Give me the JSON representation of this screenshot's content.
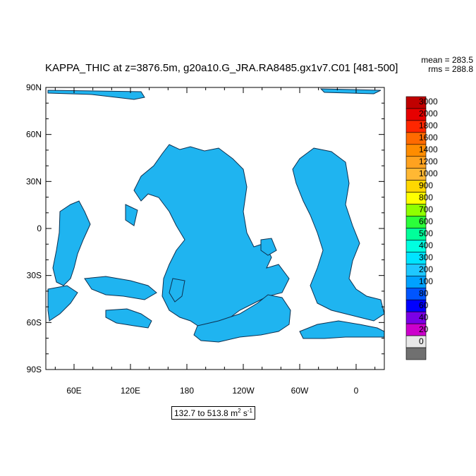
{
  "title": "KAPPA_THIC at z=3876.5m, g20a10.G_JRA.RA8485.gx1v7.C01 [481-500]",
  "stats": {
    "mean": "mean = 283.5",
    "rms": "rms = 288.8"
  },
  "map": {
    "lat_labels": [
      "90N",
      "60N",
      "30N",
      "0",
      "30S",
      "60S",
      "90S"
    ],
    "lon_labels": [
      "60E",
      "120E",
      "180",
      "120W",
      "60W",
      "0"
    ],
    "lon_range": [
      30,
      390
    ],
    "lat_range": [
      -90,
      90
    ]
  },
  "colorbar": {
    "labels": [
      "3000",
      "2000",
      "1800",
      "1600",
      "1400",
      "1200",
      "1000",
      "900",
      "800",
      "700",
      "600",
      "500",
      "400",
      "300",
      "200",
      "100",
      "80",
      "60",
      "40",
      "20",
      "0"
    ],
    "colors": [
      "#c00000",
      "#e60000",
      "#ff2600",
      "#ff6a00",
      "#ff8c00",
      "#ffa21f",
      "#ffb833",
      "#ffd700",
      "#ffff00",
      "#8fff00",
      "#2bff3a",
      "#00ff9a",
      "#00ffe0",
      "#00e4ff",
      "#1fc8ff",
      "#00a2ff",
      "#0055ff",
      "#0000ff",
      "#7a00e6",
      "#cc00cc",
      "#e8e8e8",
      "#707070"
    ]
  },
  "range": {
    "from_to": "132.7 to 513.8",
    "units_base": "m",
    "units_exp": "2",
    "units_tail": "s",
    "units_exp2": "-1"
  }
}
